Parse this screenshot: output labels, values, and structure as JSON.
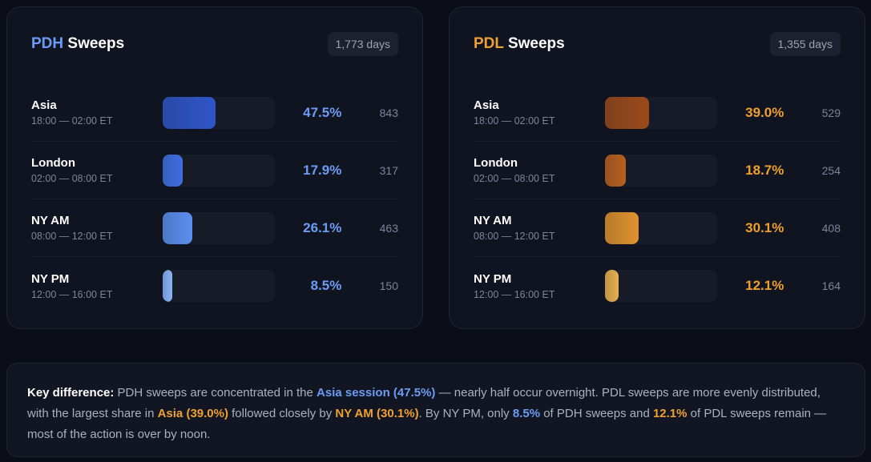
{
  "pdh": {
    "prefix": "PDH",
    "suffix": "Sweeps",
    "days": "1,773 days",
    "accent": "#6b9cf5",
    "rows": [
      {
        "name": "Asia",
        "time": "18:00 — 02:00 ET",
        "pct": "47.5%",
        "value": 47.5,
        "count": "843",
        "color": "#2f55c8"
      },
      {
        "name": "London",
        "time": "02:00 — 08:00 ET",
        "pct": "17.9%",
        "value": 17.9,
        "count": "317",
        "color": "#3f6fe0"
      },
      {
        "name": "NY AM",
        "time": "08:00 — 12:00 ET",
        "pct": "26.1%",
        "value": 26.1,
        "count": "463",
        "color": "#5b8ff0"
      },
      {
        "name": "NY PM",
        "time": "12:00 — 16:00 ET",
        "pct": "8.5%",
        "value": 8.5,
        "count": "150",
        "color": "#8ab4f8"
      }
    ]
  },
  "pdl": {
    "prefix": "PDL",
    "suffix": "Sweeps",
    "days": "1,355 days",
    "accent": "#f0a030",
    "rows": [
      {
        "name": "Asia",
        "time": "18:00 — 02:00 ET",
        "pct": "39.0%",
        "value": 39.0,
        "count": "529",
        "color": "#9a4a1a"
      },
      {
        "name": "London",
        "time": "02:00 — 08:00 ET",
        "pct": "18.7%",
        "value": 18.7,
        "count": "254",
        "color": "#b8601f"
      },
      {
        "name": "NY AM",
        "time": "08:00 — 12:00 ET",
        "pct": "30.1%",
        "value": 30.1,
        "count": "408",
        "color": "#e0922e"
      },
      {
        "name": "NY PM",
        "time": "12:00 — 16:00 ET",
        "pct": "12.1%",
        "value": 12.1,
        "count": "164",
        "color": "#e8b050"
      }
    ]
  },
  "note": {
    "lead": "Key difference:",
    "t1": " PDH sweeps are concentrated in the ",
    "h1": "Asia session (47.5%)",
    "t2": " — nearly half occur overnight. PDL sweeps are more evenly distributed, with the largest share in ",
    "h2": "Asia (39.0%)",
    "t3": " followed closely by ",
    "h3": "NY AM (30.1%)",
    "t4": ". By NY PM, only ",
    "h4": "8.5%",
    "t5": " of PDH sweeps and ",
    "h5": "12.1%",
    "t6": " of PDL sweeps remain — most of the action is over by noon."
  }
}
